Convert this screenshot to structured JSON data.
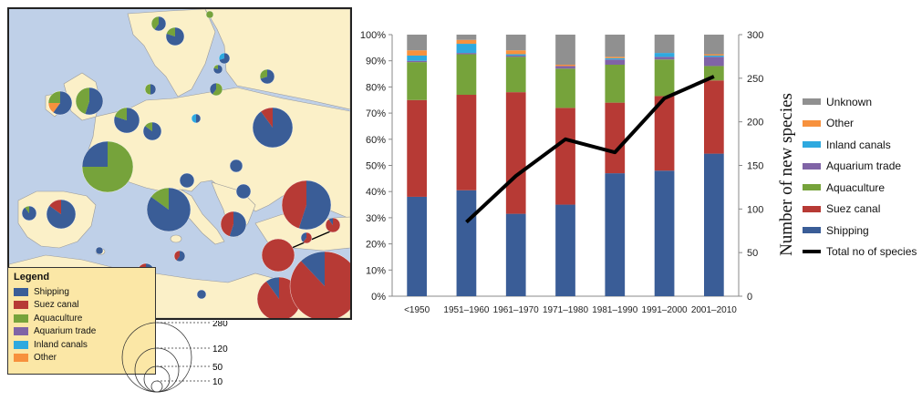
{
  "colors": {
    "shipping": "#3a5d97",
    "suez": "#b73a35",
    "aquaculture": "#76a33b",
    "aquarium": "#8064a6",
    "inland": "#2ea9df",
    "other": "#f7913d",
    "unknown": "#909090",
    "total": "#000000",
    "sea": "#bfd0e8",
    "land": "#fbf0c8"
  },
  "map": {
    "legend": {
      "title": "Legend",
      "items": [
        {
          "label": "Shipping",
          "color": "#3a5d97"
        },
        {
          "label": "Suez canal",
          "color": "#b73a35"
        },
        {
          "label": "Aquaculture",
          "color": "#76a33b"
        },
        {
          "label": "Aquarium trade",
          "color": "#8064a6"
        },
        {
          "label": "Inland canals",
          "color": "#2ea9df"
        },
        {
          "label": "Other",
          "color": "#f7913d"
        }
      ]
    },
    "size_legend": [
      "280",
      "120",
      "50",
      "10"
    ]
  },
  "chart_data": {
    "type": "bar",
    "subtype": "stacked-percent-with-line",
    "categories": [
      "<1950",
      "1951–1960",
      "1961–1970",
      "1971–1980",
      "1981–1990",
      "1991–2000",
      "2001–2010"
    ],
    "y_left": {
      "ticks": [
        "0%",
        "10%",
        "20%",
        "30%",
        "40%",
        "50%",
        "60%",
        "70%",
        "80%",
        "90%",
        "100%"
      ],
      "lim": [
        0,
        100
      ]
    },
    "y_right": {
      "label": "Number of new species",
      "ticks": [
        "0",
        "50",
        "100",
        "150",
        "200",
        "250",
        "300"
      ],
      "lim": [
        0,
        300
      ]
    },
    "series": [
      {
        "name": "Shipping",
        "color": "#3a5d97",
        "values": [
          38,
          40.5,
          31.5,
          35,
          47,
          48,
          54.5
        ]
      },
      {
        "name": "Suez canal",
        "color": "#b73a35",
        "values": [
          37,
          36.5,
          46.5,
          37,
          27,
          28.5,
          28
        ]
      },
      {
        "name": "Aquaculture",
        "color": "#76a33b",
        "values": [
          14.5,
          15.5,
          13.5,
          15,
          14.5,
          14,
          5.5
        ]
      },
      {
        "name": "Aquarium trade",
        "color": "#8064a6",
        "values": [
          0.5,
          0.5,
          0.5,
          1,
          2,
          1,
          3.5
        ]
      },
      {
        "name": "Inland canals",
        "color": "#2ea9df",
        "values": [
          2,
          3.5,
          0.5,
          0,
          0.5,
          1.5,
          0.5
        ]
      },
      {
        "name": "Other",
        "color": "#f7913d",
        "values": [
          2,
          1.5,
          1.5,
          0.5,
          0.5,
          0,
          0.5
        ]
      },
      {
        "name": "Unknown",
        "color": "#909090",
        "values": [
          6,
          2,
          6,
          11.5,
          8.5,
          7,
          7.5
        ]
      }
    ],
    "line": {
      "name": "Total no of species",
      "color": "#000000",
      "x_start_index": 1,
      "values": [
        85,
        138,
        180,
        165,
        227,
        252
      ]
    },
    "legend_order": [
      "Unknown",
      "Other",
      "Inland canals",
      "Aquarium trade",
      "Aquaculture",
      "Suez canal",
      "Shipping",
      "Total no of species"
    ],
    "legend_position": "right",
    "grid": false
  }
}
